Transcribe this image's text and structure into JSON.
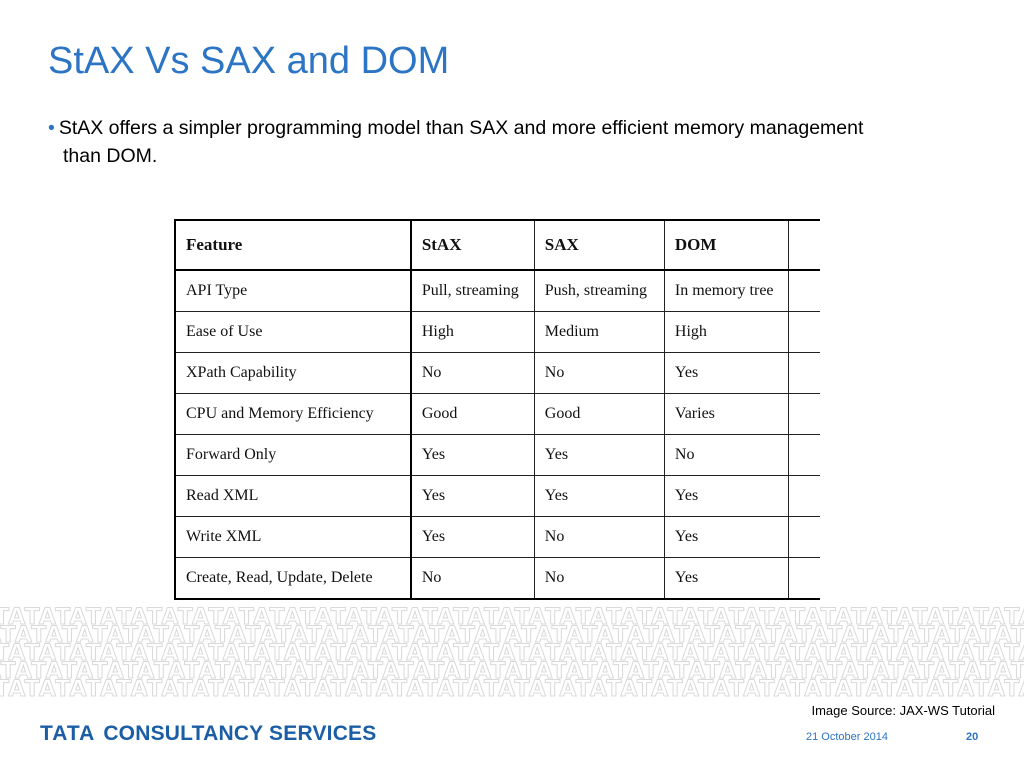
{
  "slide": {
    "title": "StAX Vs SAX and DOM",
    "bullet": "StAX offers a simpler programming model than SAX and more efficient memory management than DOM.",
    "bullet_marker": "•"
  },
  "table": {
    "headers": [
      "Feature",
      "StAX",
      "SAX",
      "DOM"
    ],
    "rows": [
      [
        "API Type",
        "Pull, streaming",
        "Push, streaming",
        "In memory tree"
      ],
      [
        "Ease of Use",
        "High",
        "Medium",
        "High"
      ],
      [
        "XPath Capability",
        "No",
        "No",
        "Yes"
      ],
      [
        "CPU and Memory Efficiency",
        "Good",
        "Good",
        "Varies"
      ],
      [
        "Forward Only",
        "Yes",
        "Yes",
        "No"
      ],
      [
        "Read XML",
        "Yes",
        "Yes",
        "Yes"
      ],
      [
        "Write XML",
        "Yes",
        "No",
        "Yes"
      ],
      [
        "Create, Read, Update, Delete",
        "No",
        "No",
        "Yes"
      ]
    ]
  },
  "footer": {
    "image_source": "Image Source: JAX-WS Tutorial",
    "logo_tata": "TATA",
    "logo_rest": "CONSULTANCY SERVICES",
    "date": "21 October 2014",
    "page": "20",
    "pattern_word": "TATA"
  },
  "colors": {
    "title": "#2c74c4",
    "logo": "#1b5ea6",
    "pattern": "#d9d9d9"
  }
}
